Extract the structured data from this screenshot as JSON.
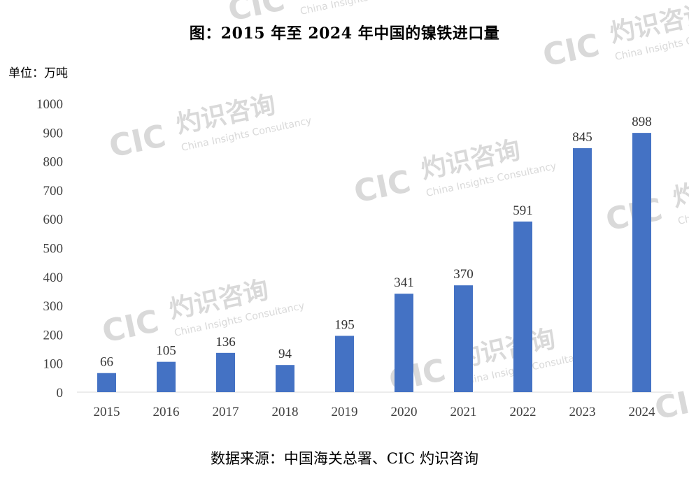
{
  "title": "图：2015 年至 2024 年中国的镍铁进口量",
  "unit_label": "单位：万吨",
  "source": "数据来源：中国海关总署、CIC 灼识咨询",
  "watermark": {
    "cn": "灼识咨询",
    "en": "China Insights Consultancy",
    "logo": "CIC",
    "color": "#d9d9d9"
  },
  "chart_data": {
    "type": "bar",
    "categories": [
      "2015",
      "2016",
      "2017",
      "2018",
      "2019",
      "2020",
      "2021",
      "2022",
      "2023",
      "2024"
    ],
    "values": [
      66,
      105,
      136,
      94,
      195,
      341,
      370,
      591,
      845,
      898
    ],
    "ylim": [
      0,
      1000
    ],
    "yticks": [
      0,
      100,
      200,
      300,
      400,
      500,
      600,
      700,
      800,
      900,
      1000
    ],
    "bar_color": "#4472C4",
    "grid": false,
    "legend": "none"
  }
}
